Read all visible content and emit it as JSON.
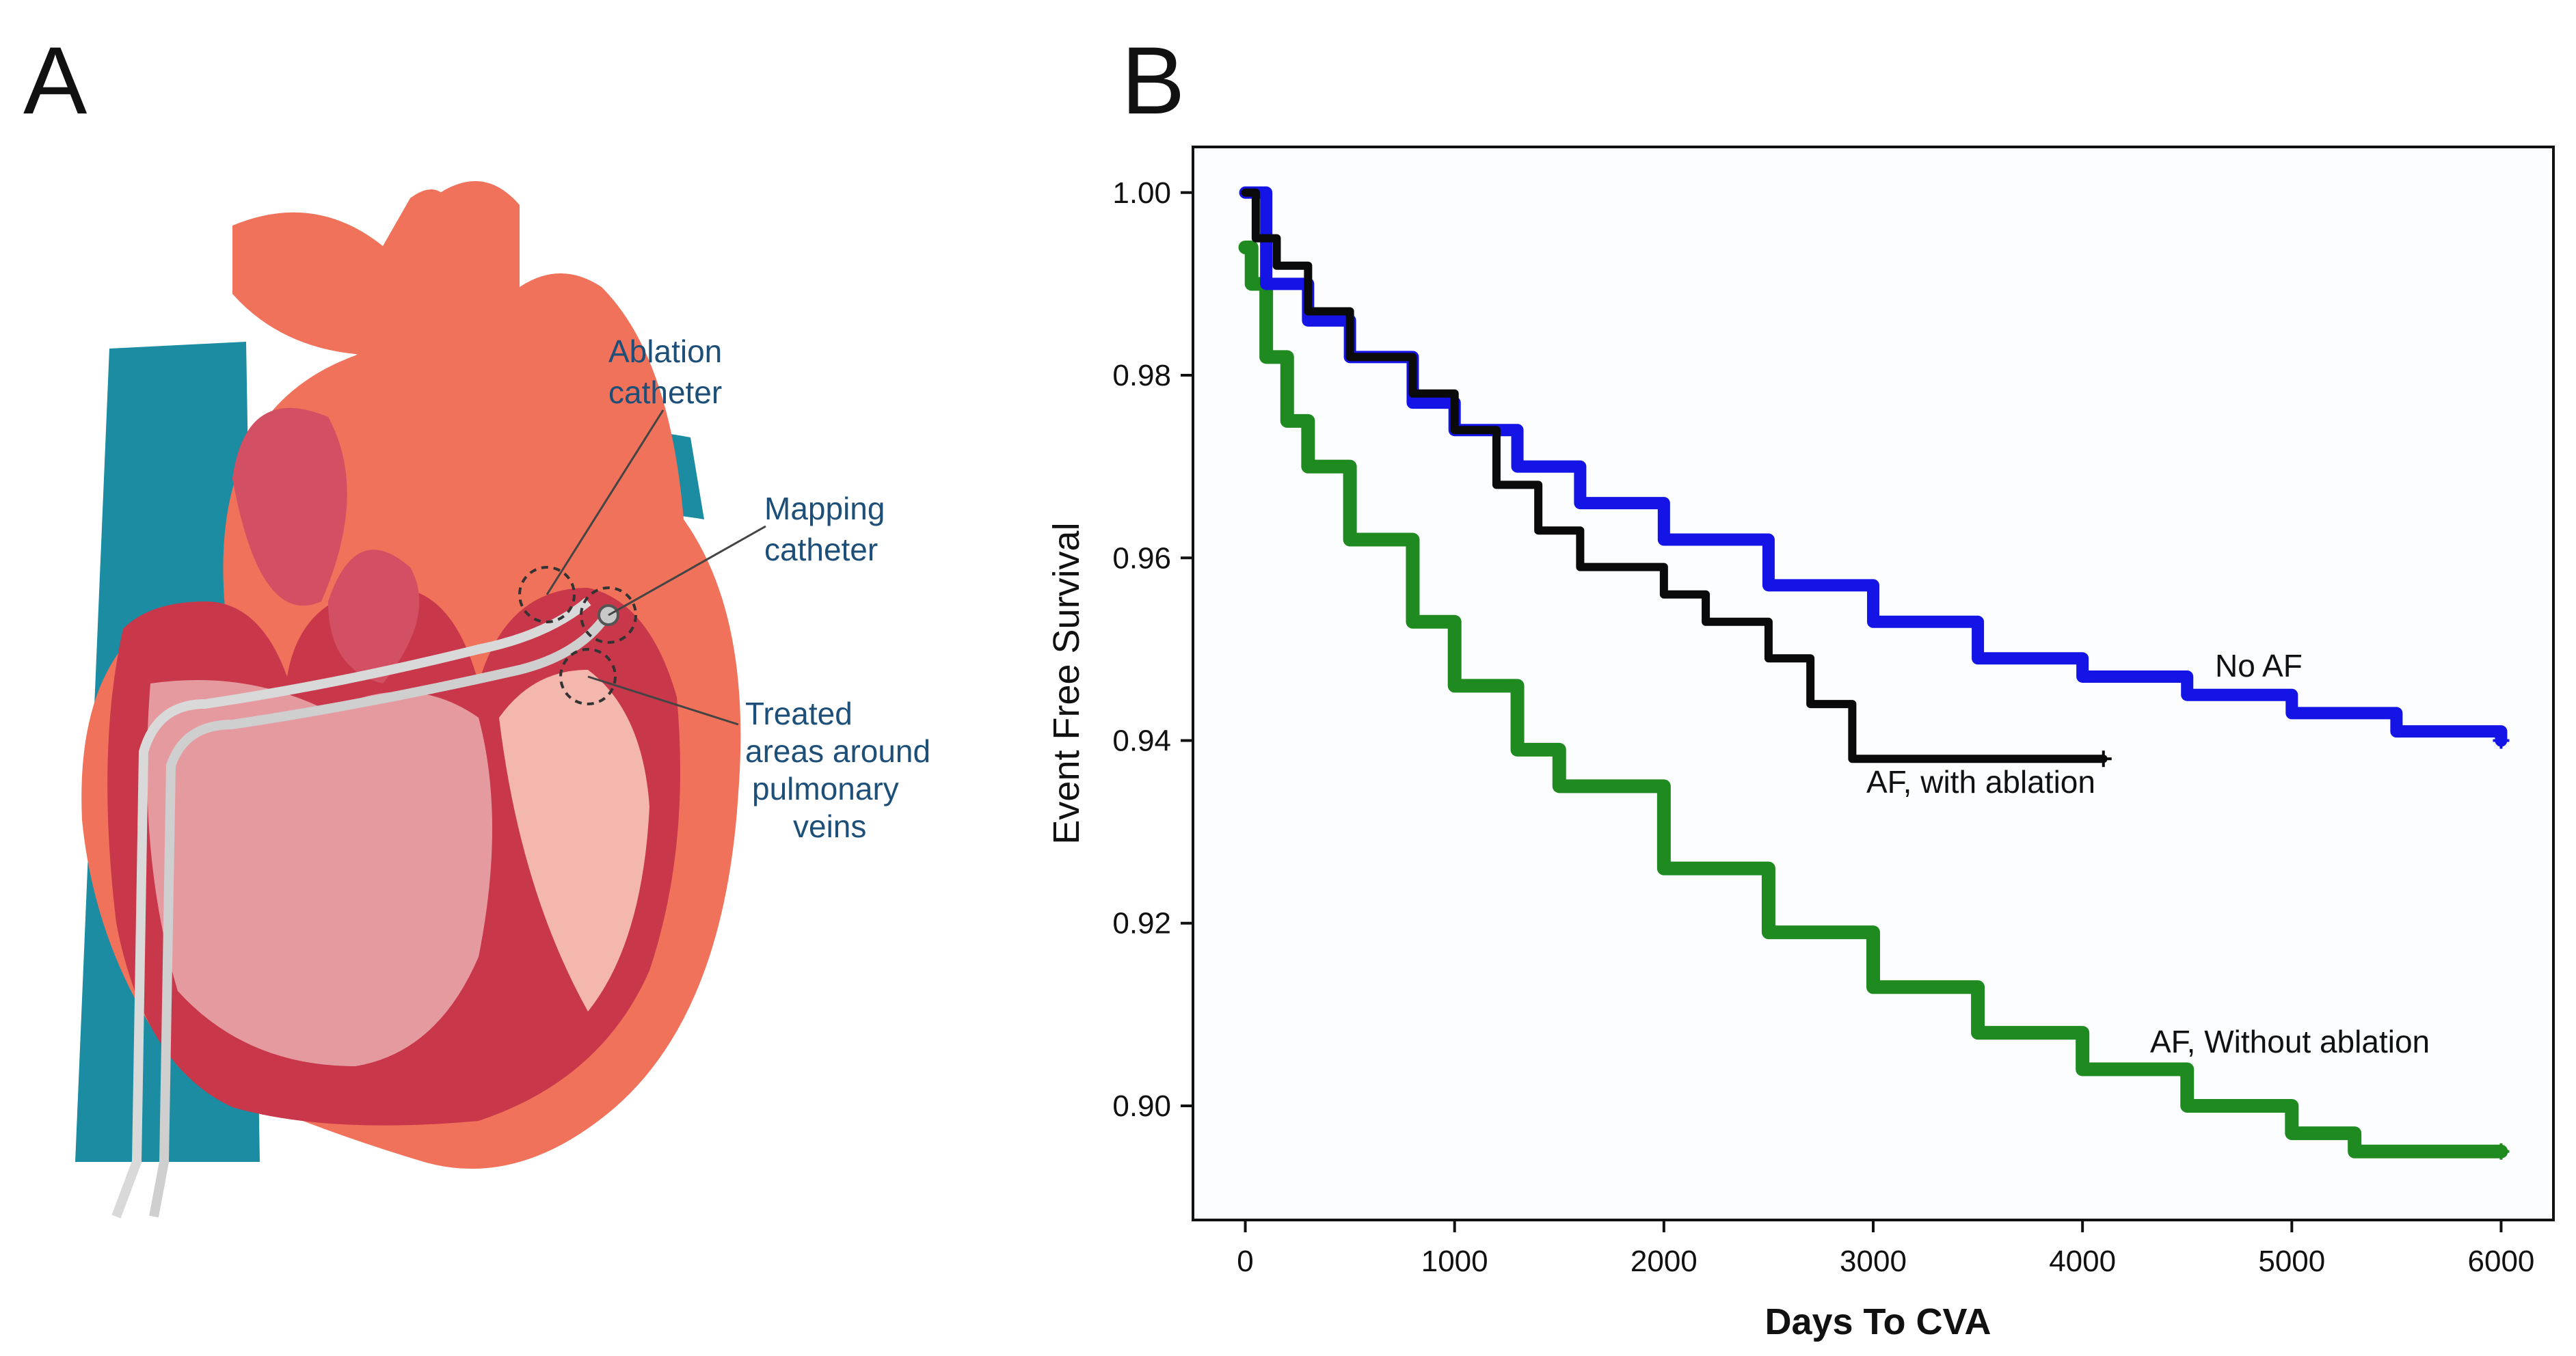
{
  "panels": {
    "a": "A",
    "b": "B"
  },
  "heart": {
    "callouts": [
      {
        "lines": [
          "Ablation",
          "catheter"
        ]
      },
      {
        "lines": [
          "Mapping",
          "catheter"
        ]
      },
      {
        "lines": [
          "Treated",
          "areas around",
          "pulmonary",
          "veins"
        ]
      }
    ]
  },
  "colors": {
    "no_af": "#1414e6",
    "af_with": "#0a0a0a",
    "af_without": "#1f8a1f"
  },
  "chart_data": {
    "type": "line",
    "title": "",
    "xlabel": "Days To CVA",
    "ylabel": "Event Free Survival",
    "xlim": [
      -250,
      6250
    ],
    "ylim": [
      0.8875,
      1.005
    ],
    "xticks": [
      0,
      1000,
      2000,
      3000,
      4000,
      5000,
      6000
    ],
    "xtick_labels": [
      "0",
      "1000",
      "2000",
      "3000",
      "4000",
      "5000",
      "6000"
    ],
    "yticks": [
      0.9,
      0.92,
      0.94,
      0.96,
      0.98,
      1.0
    ],
    "ytick_labels": [
      "0.90",
      "0.92",
      "0.94",
      "0.96",
      "0.98",
      "1.00"
    ],
    "series": [
      {
        "name": "No AF",
        "label": "No AF",
        "x": [
          0,
          100,
          300,
          500,
          800,
          1000,
          1300,
          1600,
          2000,
          2500,
          3000,
          3500,
          4000,
          4500,
          5000,
          5500,
          6000
        ],
        "y": [
          1.0,
          0.99,
          0.986,
          0.982,
          0.977,
          0.974,
          0.97,
          0.966,
          0.962,
          0.957,
          0.953,
          0.949,
          0.947,
          0.945,
          0.943,
          0.941,
          0.94
        ]
      },
      {
        "name": "AF, with ablation",
        "label": "AF, with ablation",
        "x": [
          0,
          50,
          150,
          300,
          500,
          800,
          1000,
          1200,
          1400,
          1600,
          1800,
          2000,
          2200,
          2500,
          2700,
          2900,
          3100,
          3500,
          4000,
          4100
        ],
        "y": [
          1.0,
          0.995,
          0.992,
          0.987,
          0.982,
          0.978,
          0.974,
          0.968,
          0.963,
          0.959,
          0.959,
          0.956,
          0.953,
          0.949,
          0.944,
          0.938,
          0.938,
          0.938,
          0.938,
          0.938
        ]
      },
      {
        "name": "AF, Without ablation",
        "label": "AF, Without ablation",
        "x": [
          0,
          30,
          100,
          200,
          300,
          500,
          800,
          1000,
          1300,
          1500,
          2000,
          2500,
          3000,
          3500,
          4000,
          4500,
          5000,
          5300,
          6000
        ],
        "y": [
          0.994,
          0.99,
          0.982,
          0.975,
          0.97,
          0.962,
          0.953,
          0.946,
          0.939,
          0.935,
          0.926,
          0.919,
          0.913,
          0.908,
          0.904,
          0.9,
          0.897,
          0.895,
          0.895
        ]
      }
    ]
  }
}
